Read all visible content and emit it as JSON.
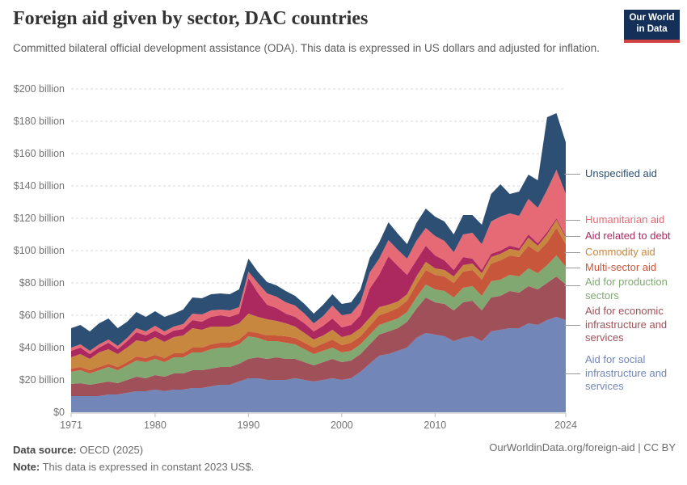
{
  "header": {
    "title": "Foreign aid given by sector, DAC countries",
    "subtitle": "Committed bilateral official development assistance (ODA). This data is expressed in US dollars and adjusted for inflation.",
    "logo": {
      "line1": "Our World",
      "line2": "in Data",
      "bg": "#143059",
      "accent": "#d14343"
    }
  },
  "footer": {
    "source_label": "Data source:",
    "source_value": " OECD (2025)",
    "note_label": "Note:",
    "note_value": " This data is expressed in constant 2023 US$.",
    "link": "OurWorldinData.org/foreign-aid | CC BY"
  },
  "chart_data": {
    "type": "area",
    "stacked": true,
    "title": "Foreign aid given by sector, DAC countries",
    "ylabel": "",
    "xlabel": "",
    "ylim": [
      0,
      200
    ],
    "grid": "dashed-horizontal",
    "legend_position": "right",
    "x": [
      1971,
      1972,
      1973,
      1974,
      1975,
      1976,
      1977,
      1978,
      1979,
      1980,
      1981,
      1982,
      1983,
      1984,
      1985,
      1986,
      1987,
      1988,
      1989,
      1990,
      1991,
      1992,
      1993,
      1994,
      1995,
      1996,
      1997,
      1998,
      1999,
      2000,
      2001,
      2002,
      2003,
      2004,
      2005,
      2006,
      2007,
      2008,
      2009,
      2010,
      2011,
      2012,
      2013,
      2014,
      2015,
      2016,
      2017,
      2018,
      2019,
      2020,
      2021,
      2022,
      2023,
      2024
    ],
    "x_ticks": [
      {
        "value": 1971,
        "label": "1971"
      },
      {
        "value": 1980,
        "label": "1980"
      },
      {
        "value": 1990,
        "label": "1990"
      },
      {
        "value": 2000,
        "label": "2000"
      },
      {
        "value": 2010,
        "label": "2010"
      },
      {
        "value": 2024,
        "label": "2024"
      }
    ],
    "y_ticks": [
      {
        "value": 0,
        "label": "$0"
      },
      {
        "value": 20,
        "label": "$20 billion"
      },
      {
        "value": 40,
        "label": "$40 billion"
      },
      {
        "value": 60,
        "label": "$60 billion"
      },
      {
        "value": 80,
        "label": "$80 billion"
      },
      {
        "value": 100,
        "label": "$100 billion"
      },
      {
        "value": 120,
        "label": "$120 billion"
      },
      {
        "value": 140,
        "label": "$140 billion"
      },
      {
        "value": 160,
        "label": "$160 billion"
      },
      {
        "value": 180,
        "label": "$180 billion"
      },
      {
        "value": 200,
        "label": "$200 billion"
      }
    ],
    "units": "billion constant 2023 US$",
    "series": [
      {
        "name": "Aid for social infrastructure and services",
        "color": "#7286b8",
        "values": [
          10,
          10,
          10,
          10,
          11,
          11,
          12,
          13,
          13,
          14,
          13,
          14,
          14,
          15,
          15,
          16,
          17,
          17,
          19,
          21,
          21,
          20,
          20,
          20,
          21,
          20,
          19,
          20,
          21,
          20,
          21,
          25,
          30,
          35,
          36,
          38,
          40,
          46,
          49,
          48,
          47,
          44,
          46,
          47,
          44,
          50,
          51,
          52,
          52,
          55,
          54,
          57,
          59,
          57
        ]
      },
      {
        "name": "Aid for economic infrastructure and services",
        "color": "#a05058",
        "values": [
          7.5,
          8,
          7,
          8,
          8,
          7,
          8,
          9,
          8,
          9,
          9,
          10,
          10,
          11,
          11,
          11,
          11,
          11,
          11,
          12,
          13,
          13,
          14,
          13,
          12,
          11,
          10,
          11,
          12,
          11,
          11,
          11,
          12,
          13,
          14,
          14,
          16,
          18,
          22,
          20,
          20,
          19,
          22,
          22,
          19,
          21,
          21,
          23,
          22,
          23,
          22,
          23,
          25,
          22
        ]
      },
      {
        "name": "Aid for production sectors",
        "color": "#81a871",
        "values": [
          7.5,
          8,
          7,
          8,
          9,
          8,
          9,
          10,
          10,
          10,
          9,
          10,
          10,
          11,
          11,
          12,
          12,
          12,
          12,
          14,
          12,
          11,
          10,
          10,
          9,
          8,
          7,
          7,
          7,
          6,
          6,
          6,
          6,
          6,
          6,
          6,
          6,
          7,
          8,
          8,
          8,
          8,
          9,
          9,
          9,
          10,
          10,
          10,
          10,
          11,
          10,
          11,
          13,
          11
        ]
      },
      {
        "name": "Multi-sector aid",
        "color": "#c7563b",
        "values": [
          2,
          2,
          2,
          2,
          2,
          2,
          2,
          2.5,
          2.5,
          2.5,
          2.5,
          2.5,
          2.5,
          3,
          3,
          3,
          3,
          3,
          3,
          3,
          3,
          3.5,
          3.5,
          4,
          4,
          4,
          4,
          4.5,
          5,
          4.5,
          5,
          5,
          5.5,
          6,
          6,
          6.5,
          7,
          8,
          9,
          9,
          9,
          9,
          10,
          10,
          10,
          11,
          12,
          12,
          12,
          14,
          13,
          14,
          17,
          14
        ]
      },
      {
        "name": "Commodity aid",
        "color": "#c8873e",
        "values": [
          7,
          8,
          7,
          9,
          9,
          8,
          9,
          10,
          10,
          11,
          10,
          10,
          11,
          12,
          11,
          11,
          10,
          10,
          10,
          11,
          10,
          10,
          9,
          8,
          7,
          6,
          5,
          5,
          6,
          5,
          5,
          5,
          5,
          5,
          4.5,
          4,
          4,
          5,
          5,
          4,
          4,
          4,
          4,
          4,
          4,
          4,
          4,
          4,
          4,
          5,
          4,
          5,
          5,
          4
        ]
      },
      {
        "name": "Aid related to debt",
        "color": "#ac2960",
        "values": [
          4,
          4,
          3,
          3,
          4,
          3,
          4,
          5,
          4,
          4,
          4,
          4,
          4,
          5,
          5,
          6,
          7,
          6,
          6,
          22,
          15,
          9,
          8,
          6,
          6,
          6,
          5,
          6,
          7,
          6,
          6,
          8,
          18,
          20,
          30,
          22,
          12,
          10,
          10,
          8,
          6,
          4,
          5,
          3,
          2,
          2,
          2,
          2,
          1.5,
          2,
          1.5,
          1.5,
          1,
          1
        ]
      },
      {
        "name": "Humanitarian aid",
        "color": "#e56a76",
        "values": [
          2,
          2,
          2,
          2,
          2,
          2,
          2,
          2.5,
          2.5,
          3,
          2.5,
          2.5,
          3,
          4,
          4.5,
          4,
          3.5,
          4,
          4,
          4,
          6,
          7,
          7,
          7,
          7,
          6,
          5,
          6,
          8,
          7.5,
          7,
          8,
          10,
          10,
          10,
          10,
          10,
          12,
          11,
          12,
          12,
          11,
          14,
          16,
          16,
          20,
          21,
          20,
          20,
          22,
          22,
          26,
          30,
          26
        ]
      },
      {
        "name": "Unspecified aid",
        "color": "#2e4f74",
        "values": [
          12,
          12,
          12,
          13,
          13,
          11,
          10,
          10,
          9,
          9,
          9,
          8,
          9,
          10,
          10,
          10,
          10,
          10,
          11,
          8,
          7,
          7,
          7,
          7,
          6,
          6,
          6,
          7,
          7,
          7,
          7,
          8,
          9,
          10,
          11,
          10,
          9,
          11,
          12,
          12,
          12,
          11,
          12,
          11,
          12,
          17,
          20,
          12,
          15,
          15,
          17,
          45,
          35,
          32
        ]
      }
    ],
    "legend": [
      {
        "label": "Unspecified aid",
        "color": "#2e4f74"
      },
      {
        "label": "Humanitarian aid",
        "color": "#e56a76"
      },
      {
        "label": "Aid related to debt",
        "color": "#ac2960"
      },
      {
        "label": "Commodity aid",
        "color": "#c8873e"
      },
      {
        "label": "Multi-sector aid",
        "color": "#c7563b"
      },
      {
        "label": "Aid for production sectors",
        "color": "#81a871"
      },
      {
        "label": "Aid for economic infrastructure and services",
        "color": "#a05058"
      },
      {
        "label": "Aid for social infrastructure and services",
        "color": "#7286b8"
      }
    ]
  }
}
